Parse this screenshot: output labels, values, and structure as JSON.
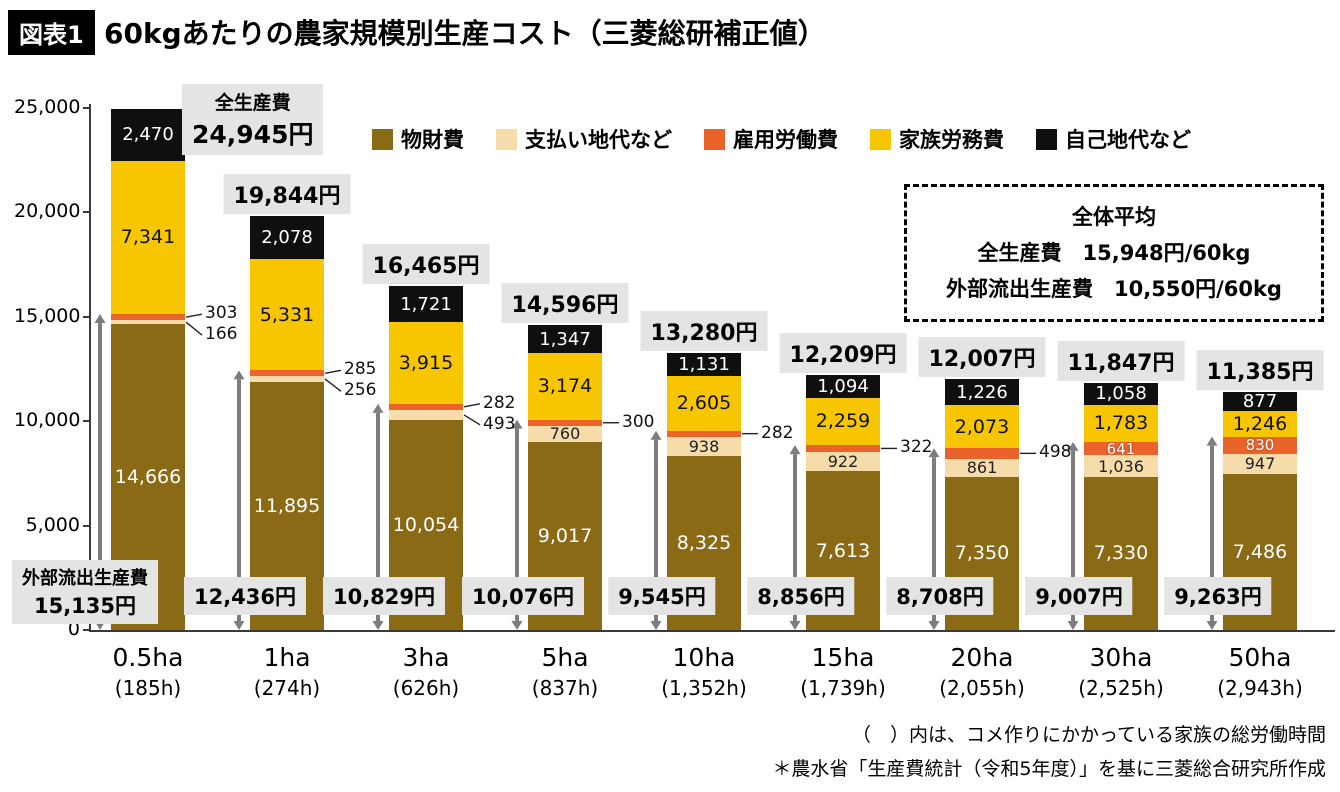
{
  "header": {
    "badge": "図表1",
    "title": "60kgあたりの農家規模別生産コスト（三菱総研補正値）"
  },
  "colors": {
    "material": "#8a6a15",
    "land": "#f6dcab",
    "hired": "#e9632a",
    "family": "#f7c600",
    "own": "#0f0f0f",
    "arrow": "#7d7d7d",
    "label_bg": "#e4e4e4"
  },
  "legend": [
    {
      "key": "material",
      "label": "物財費"
    },
    {
      "key": "land",
      "label": "支払い地代など"
    },
    {
      "key": "hired",
      "label": "雇用労働費"
    },
    {
      "key": "family",
      "label": "家族労務費"
    },
    {
      "key": "own",
      "label": "自己地代など"
    }
  ],
  "y_axis": {
    "max": 25000,
    "step": 5000,
    "labels": [
      "25,000",
      "20,000",
      "15,000",
      "10,000",
      "5,000",
      "0"
    ]
  },
  "chart_data": {
    "type": "bar",
    "stacked": true,
    "title": "60kgあたりの農家規模別生産コスト（三菱総研補正値）",
    "unit": "円/60kg",
    "ylim": [
      0,
      25000
    ],
    "categories": [
      "0.5ha",
      "1ha",
      "3ha",
      "5ha",
      "10ha",
      "15ha",
      "20ha",
      "30ha",
      "50ha"
    ],
    "family_hours": [
      "(185h)",
      "(274h)",
      "(626h)",
      "(837h)",
      "(1,352h)",
      "(1,739h)",
      "(2,055h)",
      "(2,525h)",
      "(2,943h)"
    ],
    "series": [
      {
        "key": "material",
        "name": "物財費",
        "values": [
          14666,
          11895,
          10054,
          9017,
          8325,
          7613,
          7350,
          7330,
          7486
        ]
      },
      {
        "key": "land",
        "name": "支払い地代など",
        "values": [
          166,
          256,
          493,
          760,
          938,
          922,
          861,
          1036,
          947
        ]
      },
      {
        "key": "hired",
        "name": "雇用労働費",
        "values": [
          303,
          285,
          282,
          300,
          282,
          322,
          498,
          641,
          830
        ]
      },
      {
        "key": "family",
        "name": "家族労務費",
        "values": [
          7341,
          5331,
          3915,
          3174,
          2605,
          2259,
          2073,
          1783,
          1246
        ]
      },
      {
        "key": "own",
        "name": "自己地代など",
        "values": [
          2470,
          2078,
          1721,
          1347,
          1131,
          1094,
          1226,
          1058,
          877
        ]
      }
    ],
    "total_title": "全生産費",
    "total_labels": [
      "24,945円",
      "19,844円",
      "16,465円",
      "14,596円",
      "13,280円",
      "12,209円",
      "12,007円",
      "11,847円",
      "11,385円"
    ],
    "external_title": "外部流出生産費",
    "external_values": [
      15135,
      12436,
      10829,
      10076,
      9545,
      8856,
      8708,
      9007,
      9263
    ],
    "external_labels": [
      "15,135円",
      "12,436円",
      "10,829円",
      "10,076円",
      "9,545円",
      "8,856円",
      "8,708円",
      "9,007円",
      "9,263円"
    ],
    "small_label_modes": [
      {
        "land": "callout",
        "hired": "callout"
      },
      {
        "land": "callout",
        "hired": "callout"
      },
      {
        "land": "callout",
        "hired": "callout"
      },
      {
        "land": "inside",
        "hired": "callout"
      },
      {
        "land": "inside",
        "hired": "callout"
      },
      {
        "land": "inside",
        "hired": "callout"
      },
      {
        "land": "inside",
        "hired": "callout"
      },
      {
        "land": "inside",
        "hired": "inside"
      },
      {
        "land": "inside",
        "hired": "inside"
      }
    ]
  },
  "average_box": {
    "title": "全体平均",
    "line1": "全生産費　15,948円/60kg",
    "line2": "外部流出生産費　10,550円/60kg"
  },
  "footnotes": {
    "line1": "（　）内は、コメ作りにかかっている家族の総労働時間",
    "line2": "＊農水省「生産費統計（令和5年度）」を基に三菱総合研究所作成"
  }
}
